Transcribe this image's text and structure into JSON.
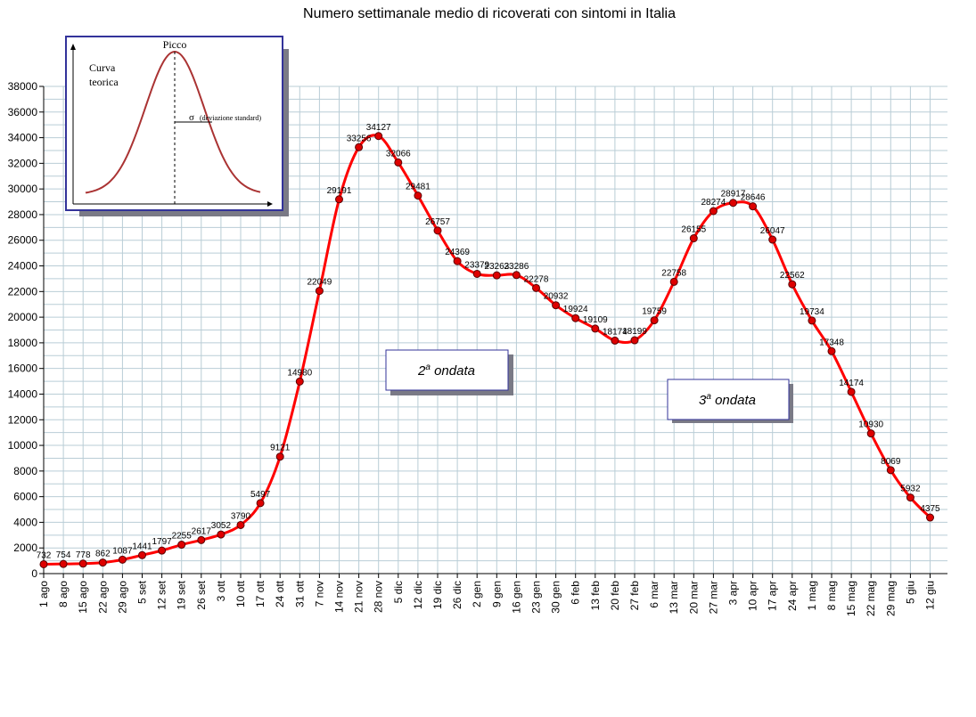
{
  "title": "Numero settimanale medio di ricoverati con sintomi in Italia",
  "inset": {
    "peak_label": "Picco",
    "curve_label_line1": "Curva",
    "curve_label_line2": "teorica",
    "sigma_symbol": "σ",
    "sigma_label": "(deviazione standard)"
  },
  "annotations": [
    {
      "prefix": "2",
      "sup": "a",
      "suffix": " ondata"
    },
    {
      "prefix": "3",
      "sup": "a",
      "suffix": " ondata"
    }
  ],
  "colors": {
    "line": "#ff0000",
    "marker": "#dd0000",
    "grid": "#b9cdd6",
    "inset_border": "#33339a",
    "inset_curve": "#aa3333",
    "box_shadow": "#7a7a86"
  },
  "chart_data": {
    "type": "line",
    "categories": [
      "1 ago",
      "8 ago",
      "15 ago",
      "22 ago",
      "29 ago",
      "5 set",
      "12 set",
      "19 set",
      "26 set",
      "3 ott",
      "10 ott",
      "17 ott",
      "24 ott",
      "31 ott",
      "7 nov",
      "14 nov",
      "21 nov",
      "28 nov",
      "5 dic",
      "12 dic",
      "19 dic",
      "26 dic",
      "2 gen",
      "9 gen",
      "16 gen",
      "23 gen",
      "30 gen",
      "6 feb",
      "13 feb",
      "20 feb",
      "27 feb",
      "6 mar",
      "13 mar",
      "20 mar",
      "27 mar",
      "3 apr",
      "10 apr",
      "17 apr",
      "24 apr",
      "1 mag",
      "8 mag",
      "15 mag",
      "22 mag",
      "29 mag",
      "5 giu",
      "12 giu"
    ],
    "values": [
      732,
      754,
      778,
      862,
      1087,
      1441,
      1797,
      2255,
      2617,
      3052,
      3790,
      5497,
      9121,
      14980,
      22049,
      29191,
      33256,
      34127,
      32066,
      29481,
      26757,
      24369,
      23379,
      23263,
      23286,
      22278,
      20932,
      19924,
      19109,
      18174,
      18199,
      19759,
      22758,
      26155,
      28274,
      28917,
      28646,
      26047,
      22562,
      19734,
      17348,
      14174,
      10930,
      8069,
      5932,
      4375
    ],
    "value_labels": [
      "732",
      "754",
      "778",
      "862",
      "1087",
      "1441",
      "1797",
      "2255",
      "2617",
      "3052",
      "3790",
      "5497",
      "9121",
      "14980",
      "22049",
      "29191",
      "33256",
      "34127",
      "32066",
      "29481",
      "26757",
      "24369",
      "23379",
      "23263",
      "23286",
      "22278",
      "20932",
      "19924",
      "19109",
      "18174",
      "18199",
      "19759",
      "22758",
      "26155",
      "28274",
      "28917",
      "28646",
      "26047",
      "22562",
      "19734",
      "17348",
      "14174",
      "10930",
      "8069",
      "5932",
      "4375"
    ],
    "ylim": [
      0,
      38000
    ],
    "yticks": [
      "0",
      "2000",
      "4000",
      "6000",
      "8000",
      "10000",
      "12000",
      "14000",
      "16000",
      "18000",
      "20000",
      "22000",
      "24000",
      "26000",
      "28000",
      "30000",
      "32000",
      "34000",
      "36000",
      "38000"
    ],
    "grid": true,
    "legend": "none"
  }
}
